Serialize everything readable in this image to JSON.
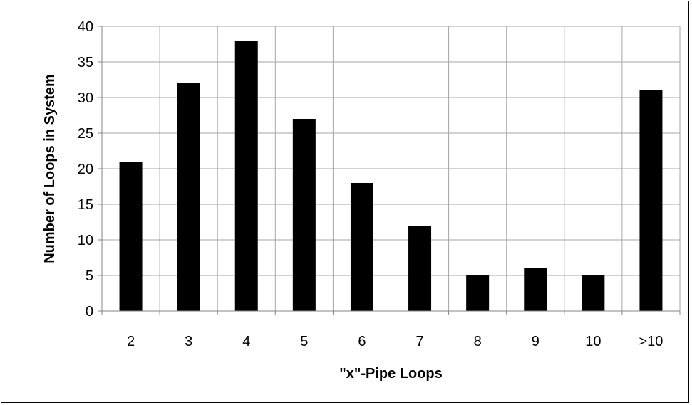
{
  "chart_data": {
    "type": "bar",
    "categories": [
      "2",
      "3",
      "4",
      "5",
      "6",
      "7",
      "8",
      "9",
      "10",
      ">10"
    ],
    "values": [
      21,
      32,
      38,
      27,
      18,
      12,
      5,
      6,
      5,
      31
    ],
    "xlabel": "\"x\"-Pipe Loops",
    "ylabel": "Number of Loops in System",
    "ylim": [
      0,
      40
    ],
    "yticks": [
      0,
      5,
      10,
      15,
      20,
      25,
      30,
      35,
      40
    ],
    "grid": true,
    "legend": "none",
    "bar_color": "#000000",
    "grid_color": "#a6a6a6"
  }
}
